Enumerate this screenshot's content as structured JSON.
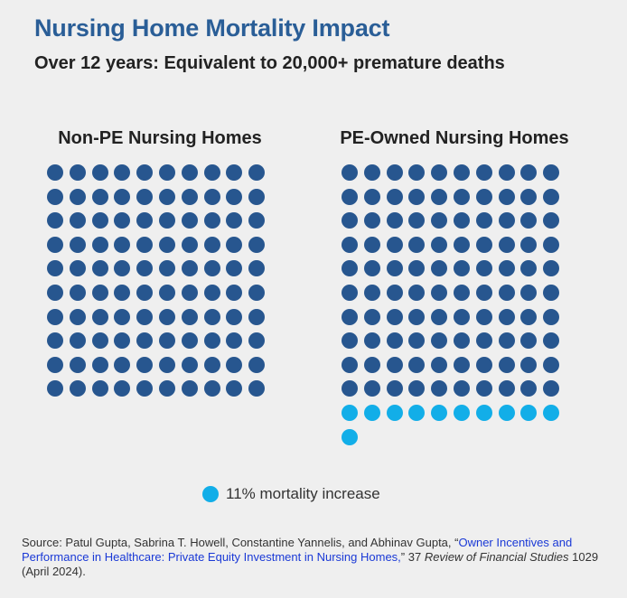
{
  "title": "Nursing Home Mortality Impact",
  "subtitle": "Over 12 years: Equivalent to 20,000+ premature deaths",
  "colors": {
    "base": "#27568f",
    "increase": "#12aee8",
    "title": "#2a5e97"
  },
  "chart_data": [
    {
      "type": "waffle",
      "title": "Non-PE Nursing Homes",
      "columns": 10,
      "series": [
        {
          "value": 100,
          "color": "#27568f"
        }
      ]
    },
    {
      "type": "waffle",
      "title": "PE-Owned Nursing Homes",
      "columns": 10,
      "series": [
        {
          "value": 100,
          "color": "#27568f"
        },
        {
          "name": "11% mortality increase",
          "value": 11,
          "color": "#12aee8"
        }
      ]
    }
  ],
  "legend": {
    "label": "11% mortality increase",
    "color": "#12aee8"
  },
  "source": {
    "prefix": "Source: Patul Gupta, Sabrina T. Howell, Constantine Yannelis, and Abhinav Gupta, “",
    "link_text": "Owner Incentives and Performance in Healthcare: Private Equity Investment in Nursing Homes,",
    "mid": "” 37 ",
    "journal": "Review of Financial Studies",
    "suffix": " 1029 (April 2024)."
  }
}
